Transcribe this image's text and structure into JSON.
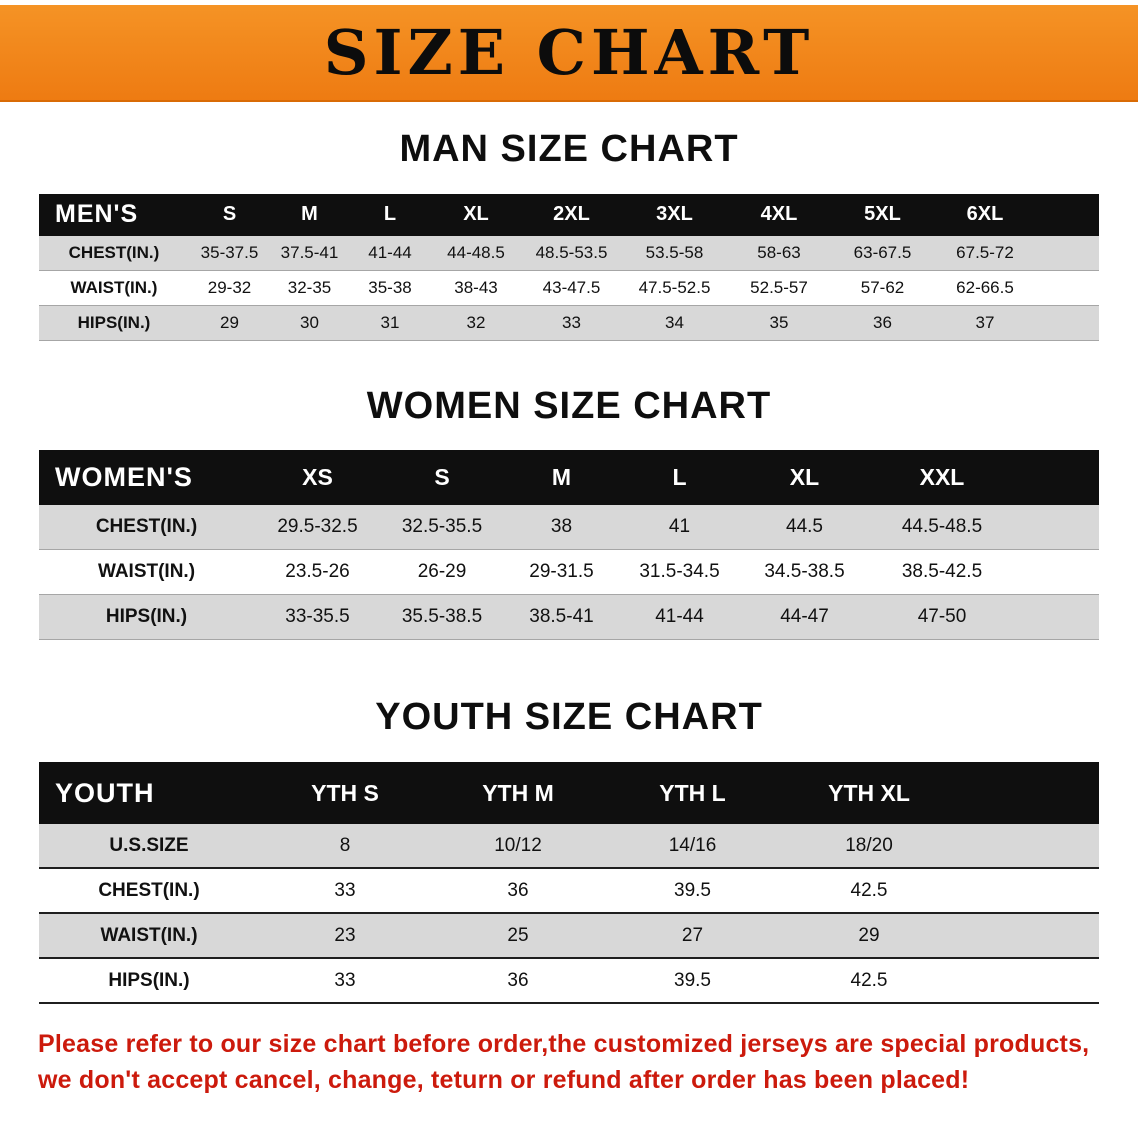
{
  "banner": {
    "title": "SIZE CHART"
  },
  "colors": {
    "banner_orange": "#ee7b12",
    "table_header_black": "#0f0f0f",
    "row_shade_gray": "#d8d8d8",
    "footer_red": "#cc1a0c"
  },
  "chart_data": [
    {
      "type": "table",
      "title": "MAN SIZE CHART",
      "header_label": "MEN'S",
      "columns": [
        "S",
        "M",
        "L",
        "XL",
        "2XL",
        "3XL",
        "4XL",
        "5XL",
        "6XL"
      ],
      "rows": [
        {
          "label": "CHEST(IN.)",
          "values": [
            "35-37.5",
            "37.5-41",
            "41-44",
            "44-48.5",
            "48.5-53.5",
            "53.5-58",
            "58-63",
            "63-67.5",
            "67.5-72"
          ]
        },
        {
          "label": "WAIST(IN.)",
          "values": [
            "29-32",
            "32-35",
            "35-38",
            "38-43",
            "43-47.5",
            "47.5-52.5",
            "52.5-57",
            "57-62",
            "62-66.5"
          ]
        },
        {
          "label": "HIPS(IN.)",
          "values": [
            "29",
            "30",
            "31",
            "32",
            "33",
            "34",
            "35",
            "36",
            "37"
          ]
        }
      ]
    },
    {
      "type": "table",
      "title": "WOMEN SIZE CHART",
      "header_label": "WOMEN'S",
      "columns": [
        "XS",
        "S",
        "M",
        "L",
        "XL",
        "XXL"
      ],
      "rows": [
        {
          "label": "CHEST(IN.)",
          "values": [
            "29.5-32.5",
            "32.5-35.5",
            "38",
            "41",
            "44.5",
            "44.5-48.5"
          ]
        },
        {
          "label": "WAIST(IN.)",
          "values": [
            "23.5-26",
            "26-29",
            "29-31.5",
            "31.5-34.5",
            "34.5-38.5",
            "38.5-42.5"
          ]
        },
        {
          "label": "HIPS(IN.)",
          "values": [
            "33-35.5",
            "35.5-38.5",
            "38.5-41",
            "41-44",
            "44-47",
            "47-50"
          ]
        }
      ]
    },
    {
      "type": "table",
      "title": "YOUTH SIZE CHART",
      "header_label": "YOUTH",
      "columns": [
        "YTH S",
        "YTH M",
        "YTH L",
        "YTH XL"
      ],
      "rows": [
        {
          "label": "U.S.SIZE",
          "values": [
            "8",
            "10/12",
            "14/16",
            "18/20"
          ]
        },
        {
          "label": "CHEST(IN.)",
          "values": [
            "33",
            "36",
            "39.5",
            "42.5"
          ]
        },
        {
          "label": "WAIST(IN.)",
          "values": [
            "23",
            "25",
            "27",
            "29"
          ]
        },
        {
          "label": "HIPS(IN.)",
          "values": [
            "33",
            "36",
            "39.5",
            "42.5"
          ]
        }
      ]
    }
  ],
  "footer": {
    "lines": [
      "Please refer to our size chart before order,the customized jerseys are special products,",
      "we don't accept cancel, change, teturn or refund after order has been placed!"
    ]
  }
}
